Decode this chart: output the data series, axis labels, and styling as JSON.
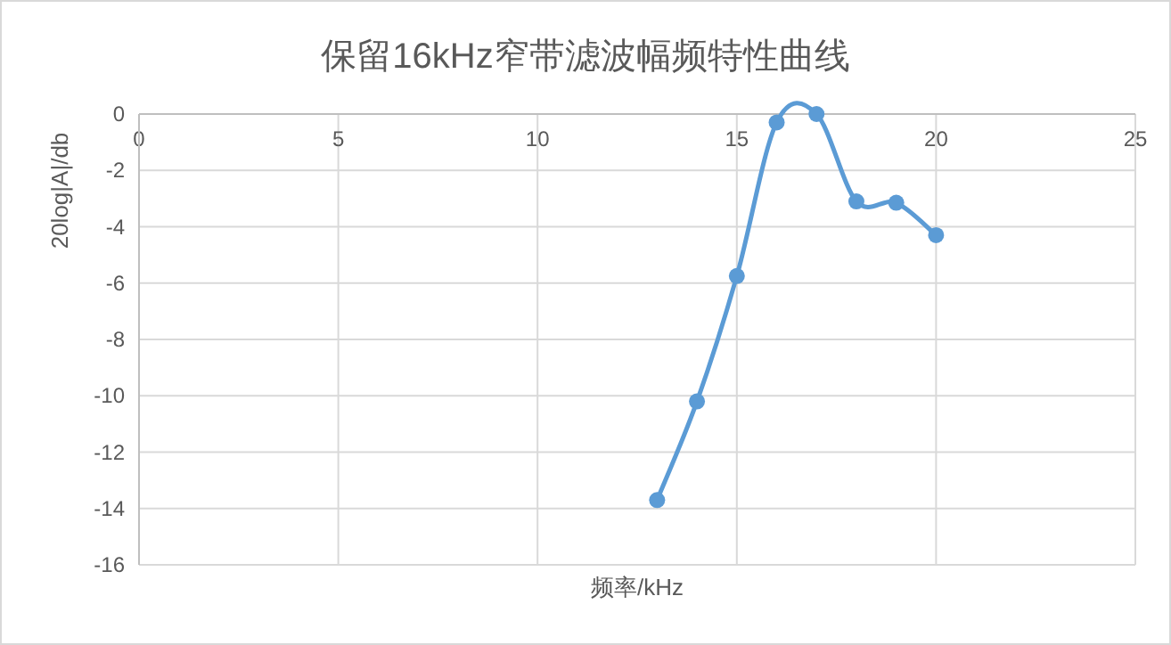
{
  "chart_data": {
    "type": "line",
    "title": "保留16kHz窄带滤波幅频特性曲线",
    "xlabel": "频率/kHz",
    "ylabel": "20log|A|/db",
    "series": [
      {
        "color": "#5b9bd5",
        "x": [
          13,
          14,
          15,
          16,
          17,
          18,
          19,
          20
        ],
        "values": [
          -13.7,
          -10.2,
          -5.75,
          -0.3,
          0,
          -3.1,
          -3.15,
          -4.3
        ]
      }
    ],
    "xlim": [
      0,
      25
    ],
    "xticks": [
      0,
      5,
      10,
      15,
      20,
      25
    ],
    "ylim": [
      -16,
      0
    ],
    "yticks": [
      -16,
      -14,
      -12,
      -10,
      -8,
      -6,
      -4,
      -2,
      0
    ],
    "grid": true,
    "marker": "circle",
    "line_style": "solid"
  }
}
